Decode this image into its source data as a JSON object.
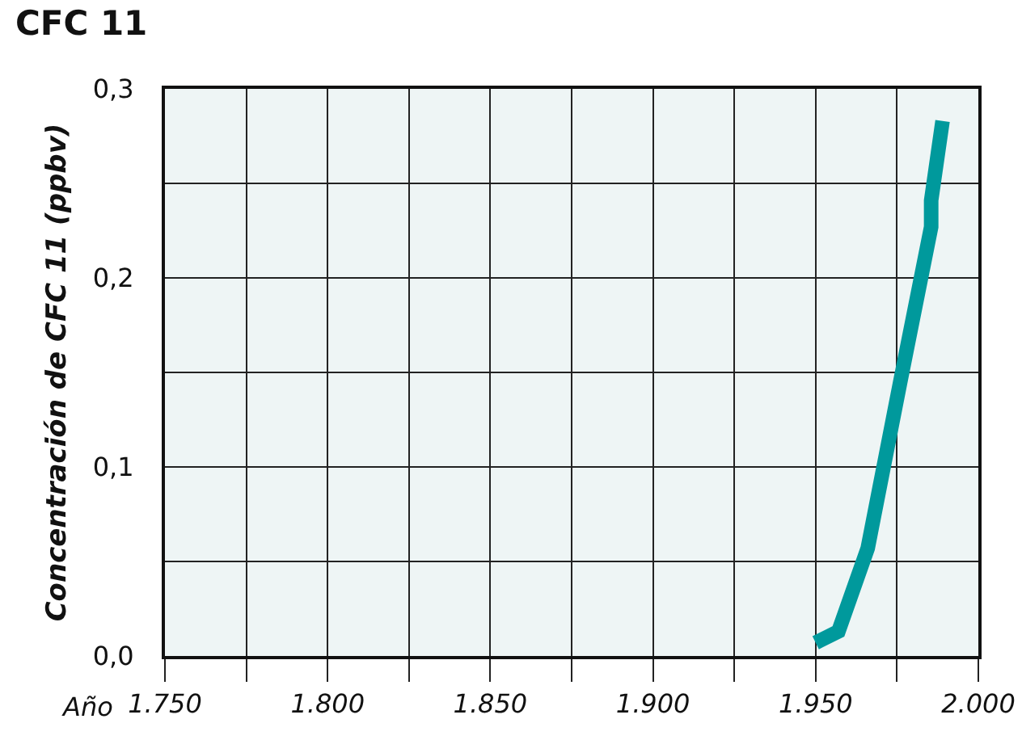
{
  "chart_data": {
    "type": "line",
    "title": "CFC 11",
    "xlabel": "Año",
    "ylabel": "Concentración de CFC 11 (ppbv)",
    "x": [
      1950,
      1957,
      1966,
      1976,
      1985.5,
      1985.5,
      1989
    ],
    "series": [
      {
        "color": "#00999c",
        "values": [
          0.007,
          0.013,
          0.057,
          0.145,
          0.227,
          0.241,
          0.283
        ]
      }
    ],
    "xlim": [
      1750,
      2000
    ],
    "xticks": [
      {
        "value": 1750,
        "label": "1.750"
      },
      {
        "value": 1775,
        "label": null
      },
      {
        "value": 1800,
        "label": "1.800"
      },
      {
        "value": 1825,
        "label": null
      },
      {
        "value": 1850,
        "label": "1.850"
      },
      {
        "value": 1875,
        "label": null
      },
      {
        "value": 1900,
        "label": "1.900"
      },
      {
        "value": 1925,
        "label": null
      },
      {
        "value": 1950,
        "label": "1.950"
      },
      {
        "value": 1975,
        "label": null
      },
      {
        "value": 2000,
        "label": "2.000"
      }
    ],
    "ylim": [
      0,
      0.3
    ],
    "yticks": [
      {
        "value": 0,
        "label": "0,0"
      },
      {
        "value": 0.05,
        "label": null
      },
      {
        "value": 0.1,
        "label": "0,1"
      },
      {
        "value": 0.15,
        "label": null
      },
      {
        "value": 0.2,
        "label": "0,2"
      },
      {
        "value": 0.25,
        "label": null
      },
      {
        "value": 0.3,
        "label": "0,3"
      }
    ],
    "grid": true,
    "marker": "none",
    "line_style": "solid"
  }
}
